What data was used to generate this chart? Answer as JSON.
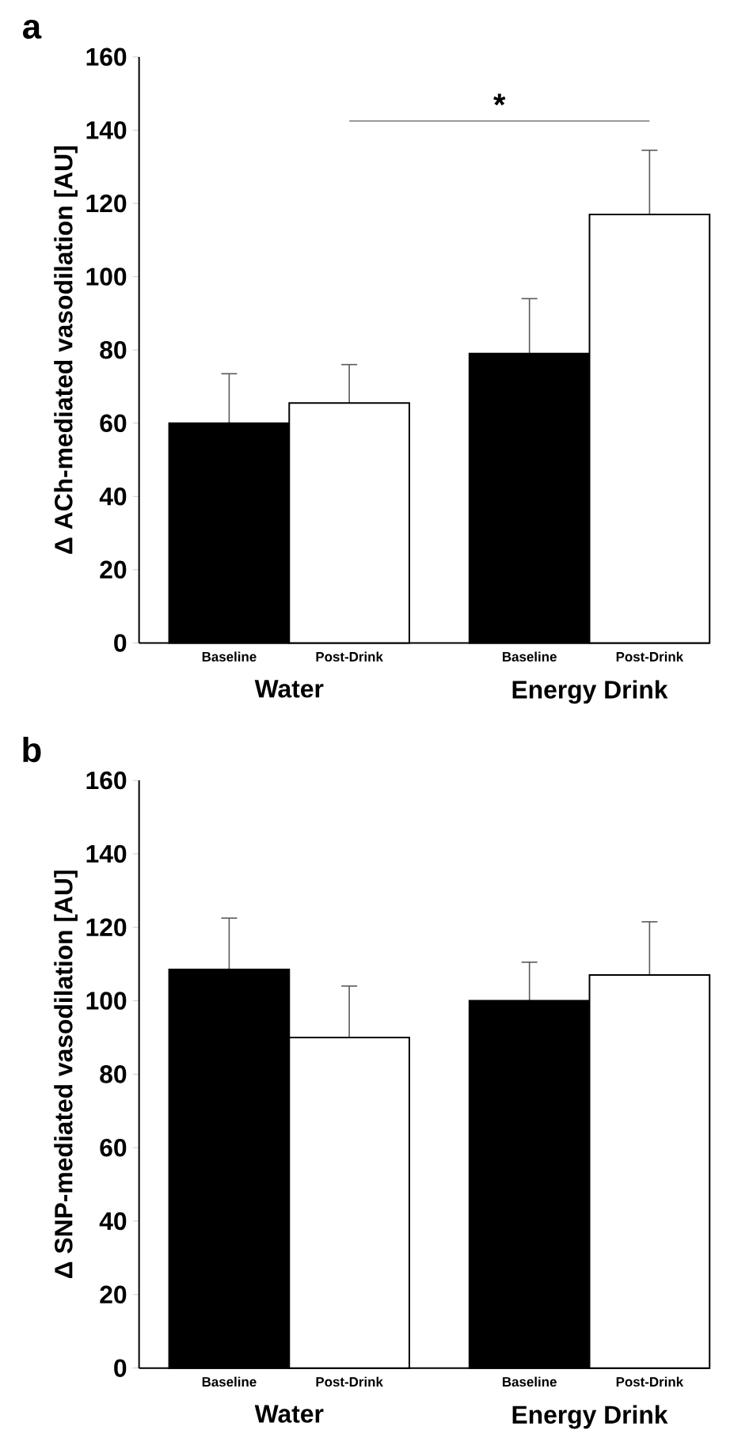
{
  "chart_data": [
    {
      "type": "bar",
      "title": "a",
      "ylabel": "Δ ACh-mediated vasodilation [AU]",
      "categories": [
        "Baseline",
        "Post-Drink",
        "Baseline",
        "Post-Drink"
      ],
      "values": [
        60,
        65.5,
        79,
        117
      ],
      "errors": [
        13.5,
        10.5,
        15,
        17.5
      ],
      "colors": [
        "#000000",
        "#ffffff",
        "#000000",
        "#ffffff"
      ],
      "ylim": [
        0,
        160
      ],
      "yticks": [
        0,
        20,
        40,
        60,
        80,
        100,
        120,
        140,
        160
      ],
      "annotations": [
        "Water",
        "Energy Drink",
        "*"
      ]
    },
    {
      "type": "bar",
      "title": "b",
      "ylabel": "Δ SNP-mediated vasodilation [AU]",
      "categories": [
        "Baseline",
        "Post-Drink",
        "Baseline",
        "Post-Drink"
      ],
      "values": [
        108.5,
        90,
        100,
        107
      ],
      "errors": [
        14,
        14,
        10.5,
        14.5
      ],
      "colors": [
        "#000000",
        "#ffffff",
        "#000000",
        "#ffffff"
      ],
      "ylim": [
        0,
        160
      ],
      "yticks": [
        0,
        20,
        40,
        60,
        80,
        100,
        120,
        140,
        160
      ],
      "annotations": [
        "Water",
        "Energy Drink"
      ]
    }
  ]
}
